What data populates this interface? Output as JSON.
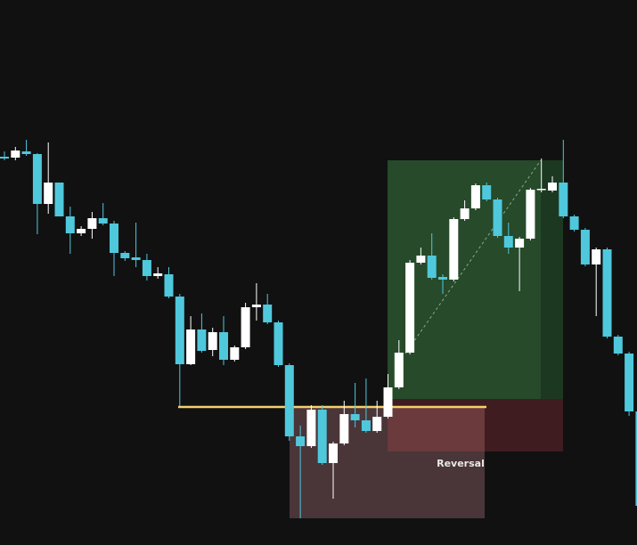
{
  "chart_data": {
    "type": "candlestick",
    "annotations": [
      "Reversal"
    ],
    "up_color": "#ffffff",
    "down_color": "#4fc8dc",
    "ylim": [
      0,
      612
    ],
    "open": [
      436,
      435,
      442,
      439,
      383,
      407,
      369,
      350,
      355,
      367,
      361,
      328,
      323,
      320,
      302,
      304,
      279,
      203,
      242,
      219,
      239,
      208,
      222,
      267,
      270,
      250,
      202,
      122,
      111,
      152,
      92,
      114,
      147,
      140,
      128,
      144,
      177,
      216,
      317,
      325,
      301,
      298,
      366,
      378,
      404,
      388,
      347,
      334,
      344,
      399,
      398,
      407,
      369,
      354,
      315,
      332,
      234,
      215,
      150
    ],
    "high": [
      442,
      447,
      455,
      440,
      452,
      407,
      380,
      358,
      374,
      384,
      364,
      330,
      362,
      327,
      312,
      312,
      282,
      257,
      260,
      244,
      257,
      224,
      272,
      294,
      282,
      252,
      204,
      134,
      157,
      157,
      116,
      162,
      182,
      187,
      162,
      192,
      230,
      320,
      334,
      350,
      304,
      368,
      387,
      406,
      407,
      390,
      362,
      346,
      401,
      434,
      414,
      455,
      371,
      356,
      334,
      334,
      236,
      217,
      152
    ],
    "low": [
      432,
      432,
      437,
      349,
      372,
      369,
      327,
      347,
      344,
      359,
      302,
      319,
      312,
      297,
      299,
      277,
      156,
      202,
      216,
      212,
      202,
      206,
      220,
      252,
      248,
      200,
      117,
      30,
      109,
      90,
      52,
      112,
      132,
      126,
      126,
      142,
      175,
      214,
      315,
      298,
      282,
      296,
      364,
      376,
      386,
      345,
      327,
      285,
      342,
      396,
      396,
      367,
      352,
      313,
      257,
      232,
      213,
      145,
      42
    ],
    "close": [
      434,
      443,
      439,
      383,
      407,
      369,
      350,
      355,
      367,
      361,
      328,
      322,
      320,
      302,
      305,
      279,
      203,
      242,
      218,
      239,
      208,
      222,
      267,
      270,
      250,
      202,
      122,
      111,
      152,
      92,
      114,
      147,
      140,
      128,
      144,
      177,
      216,
      317,
      325,
      300,
      298,
      366,
      378,
      404,
      388,
      347,
      334,
      344,
      399,
      400,
      407,
      369,
      354,
      315,
      332,
      234,
      215,
      150,
      44
    ]
  }
}
